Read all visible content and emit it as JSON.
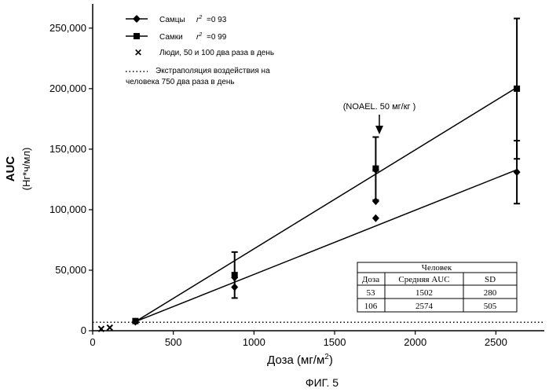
{
  "chart_data": {
    "type": "line",
    "figure_label": "ФИГ. 5",
    "xlabel": "Доза (мг/м",
    "xlabel_superscript": "2",
    "xlabel_suffix": ")",
    "ylabel": "AUC",
    "ylabel_units": "(Нг*ч/мл)",
    "xlim": [
      0,
      2800
    ],
    "ylim": [
      0,
      270000
    ],
    "xticks": [
      {
        "value": 0,
        "label": "0"
      },
      {
        "value": 500,
        "label": "500"
      },
      {
        "value": 1000,
        "label": "1000"
      },
      {
        "value": 1500,
        "label": "1500"
      },
      {
        "value": 2000,
        "label": "2000"
      },
      {
        "value": 2500,
        "label": "2500"
      }
    ],
    "yticks": [
      {
        "value": 0,
        "label": "0"
      },
      {
        "value": 50000,
        "label": "50,000"
      },
      {
        "value": 100000,
        "label": "100,000"
      },
      {
        "value": 150000,
        "label": "150,000"
      },
      {
        "value": 200000,
        "label": "200,000"
      },
      {
        "value": 250000,
        "label": "250,000"
      }
    ],
    "series": [
      {
        "name": "Самцы",
        "r2": "=0 93",
        "marker": "diamond",
        "fit_line": [
          [
            265,
            7500
          ],
          [
            2630,
            133000
          ]
        ],
        "points": [
          {
            "x": 265,
            "y": 7500,
            "err": 0
          },
          {
            "x": 880,
            "y": 44000,
            "err": 0
          },
          {
            "x": 880,
            "y": 36000,
            "err": 0
          },
          {
            "x": 1755,
            "y": 93000,
            "err": 0
          },
          {
            "x": 1755,
            "y": 107000,
            "err": 0
          },
          {
            "x": 1755,
            "y": 133000,
            "err": 0
          },
          {
            "x": 2630,
            "y": 131000,
            "err": 26000
          }
        ]
      },
      {
        "name": "Самки",
        "r2": "=0 99",
        "marker": "square",
        "fit_line": [
          [
            265,
            7500
          ],
          [
            2630,
            201000
          ]
        ],
        "points": [
          {
            "x": 265,
            "y": 8000,
            "err": 0
          },
          {
            "x": 880,
            "y": 46000,
            "err": 19000
          },
          {
            "x": 1755,
            "y": 134000,
            "err": 26000
          },
          {
            "x": 2630,
            "y": 200000,
            "err": 58000
          }
        ]
      },
      {
        "name": "Люди, 50 и 100 два раза в день",
        "marker": "x",
        "points": [
          {
            "x": 53,
            "y": 1502
          },
          {
            "x": 106,
            "y": 2574
          }
        ]
      },
      {
        "name": "Экстраполяция воздействия на человека 750 два раза в день",
        "legend_line2": "человека 750 два раза в день",
        "legend_line1": "Экстраполяция воздействия на",
        "marker": "dotted-line",
        "y_constant": 7000
      }
    ],
    "annotation": {
      "text": "(NOAEL. 50 мг/кг )",
      "x": 1755,
      "y": 160000
    },
    "table": {
      "title": "Человек",
      "headers": [
        "Доза",
        "Средняя AUC",
        "SD"
      ],
      "rows": [
        [
          "53",
          "1502",
          "280"
        ],
        [
          "106",
          "2574",
          "505"
        ]
      ]
    }
  }
}
